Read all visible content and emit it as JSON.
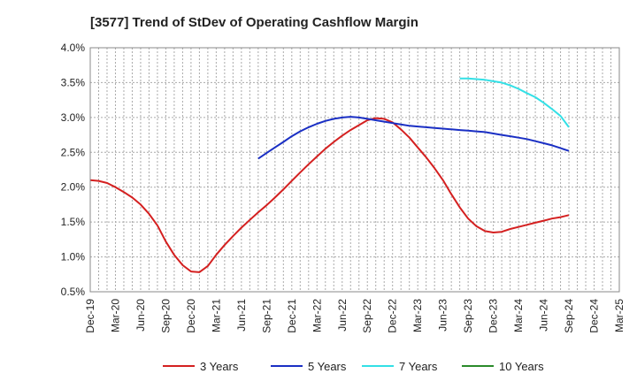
{
  "chart_data": {
    "type": "line",
    "title": "[3577]  Trend of StDev of Operating Cashflow Margin",
    "xlabel": "",
    "ylabel": "",
    "categories": [
      "Dec-19",
      "Mar-20",
      "Jun-20",
      "Sep-20",
      "Dec-20",
      "Mar-21",
      "Jun-21",
      "Sep-21",
      "Dec-21",
      "Mar-22",
      "Jun-22",
      "Sep-22",
      "Dec-22",
      "Mar-23",
      "Jun-23",
      "Sep-23",
      "Dec-23",
      "Mar-24",
      "Jun-24",
      "Sep-24",
      "Dec-24",
      "Mar-25"
    ],
    "y_ticks": [
      "0.5%",
      "1.0%",
      "1.5%",
      "2.0%",
      "2.5%",
      "3.0%",
      "3.5%",
      "4.0%"
    ],
    "ylim": [
      0.5,
      4.0
    ],
    "grid": true,
    "legend_position": "bottom",
    "colors": {
      "3 Years": "#d42020",
      "5 Years": "#1a2fc4",
      "7 Years": "#33e0e6",
      "10 Years": "#2a8a2a"
    },
    "series": [
      {
        "name": "3 Years",
        "x": [
          0,
          0.33,
          0.67,
          1,
          1.33,
          1.67,
          2,
          2.33,
          2.67,
          3,
          3.33,
          3.67,
          4,
          4.33,
          4.67,
          5,
          5.33,
          5.67,
          6,
          6.33,
          6.67,
          7,
          7.33,
          7.67,
          8,
          8.33,
          8.67,
          9,
          9.33,
          9.67,
          10,
          10.33,
          10.67,
          11,
          11.33,
          11.67,
          12,
          12.33,
          12.67,
          13,
          13.33,
          13.67,
          14,
          14.33,
          14.67,
          15,
          15.33,
          15.67,
          16,
          16.33,
          16.67,
          17,
          17.33,
          17.67,
          18,
          18.33,
          18.67,
          19
        ],
        "values": [
          2.1,
          2.09,
          2.06,
          2.0,
          1.93,
          1.85,
          1.75,
          1.62,
          1.45,
          1.22,
          1.03,
          0.88,
          0.79,
          0.78,
          0.87,
          1.03,
          1.17,
          1.3,
          1.42,
          1.53,
          1.64,
          1.74,
          1.85,
          1.97,
          2.09,
          2.21,
          2.33,
          2.44,
          2.55,
          2.65,
          2.74,
          2.82,
          2.89,
          2.96,
          2.99,
          2.98,
          2.93,
          2.83,
          2.71,
          2.57,
          2.43,
          2.27,
          2.1,
          1.9,
          1.71,
          1.55,
          1.44,
          1.37,
          1.35,
          1.36,
          1.4,
          1.43,
          1.46,
          1.49,
          1.52,
          1.55,
          1.57,
          1.6
        ]
      },
      {
        "name": "5 Years",
        "x": [
          6.67,
          7,
          7.33,
          7.67,
          8,
          8.33,
          8.67,
          9,
          9.33,
          9.67,
          10,
          10.33,
          10.67,
          11,
          11.33,
          11.67,
          12,
          12.33,
          12.67,
          13,
          13.33,
          13.67,
          14,
          14.33,
          14.67,
          15,
          15.33,
          15.67,
          16,
          16.33,
          16.67,
          17,
          17.33,
          17.67,
          18,
          18.33,
          18.67,
          19
        ],
        "values": [
          2.41,
          2.49,
          2.57,
          2.65,
          2.73,
          2.8,
          2.86,
          2.91,
          2.95,
          2.98,
          3.0,
          3.01,
          3.0,
          2.98,
          2.96,
          2.94,
          2.92,
          2.9,
          2.88,
          2.87,
          2.86,
          2.85,
          2.84,
          2.83,
          2.82,
          2.81,
          2.8,
          2.79,
          2.77,
          2.75,
          2.73,
          2.71,
          2.69,
          2.66,
          2.63,
          2.6,
          2.56,
          2.52
        ]
      },
      {
        "name": "7 Years",
        "x": [
          14.67,
          15,
          15.33,
          15.67,
          16,
          16.33,
          16.67,
          17,
          17.33,
          17.67,
          18,
          18.33,
          18.67,
          19
        ],
        "values": [
          3.56,
          3.56,
          3.55,
          3.54,
          3.52,
          3.5,
          3.46,
          3.41,
          3.35,
          3.29,
          3.21,
          3.12,
          3.02,
          2.86
        ]
      },
      {
        "name": "10 Years",
        "x": [],
        "values": []
      }
    ]
  }
}
